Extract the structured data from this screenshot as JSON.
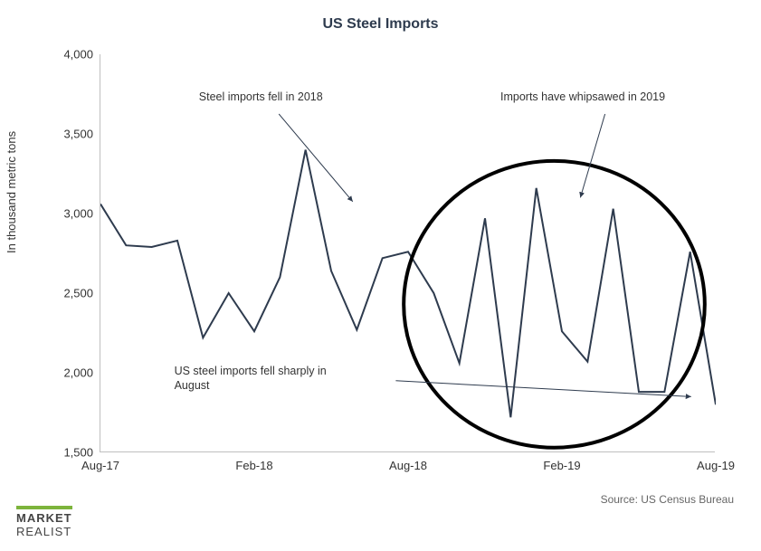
{
  "title": "US Steel Imports",
  "y_axis_label": "In thousand metric tons",
  "source": "Source: US Census Bureau",
  "logo_line1": "MARKET",
  "logo_line2": "REALIST",
  "chart": {
    "type": "line",
    "line_color": "#2e3b4e",
    "line_width": 2,
    "background_color": "#ffffff",
    "axis_color": "#bfbfbf",
    "ylim": [
      1500,
      4000
    ],
    "ytick_step": 500,
    "y_ticks": [
      {
        "value": 1500,
        "label": "1,500"
      },
      {
        "value": 2000,
        "label": "2,000"
      },
      {
        "value": 2500,
        "label": "2,500"
      },
      {
        "value": 3000,
        "label": "3,000"
      },
      {
        "value": 3500,
        "label": "3,500"
      },
      {
        "value": 4000,
        "label": "4,000"
      }
    ],
    "x_ticks": [
      {
        "index": 0,
        "label": "Aug-17"
      },
      {
        "index": 6,
        "label": "Feb-18"
      },
      {
        "index": 12,
        "label": "Aug-18"
      },
      {
        "index": 18,
        "label": "Feb-19"
      },
      {
        "index": 24,
        "label": "Aug-19"
      }
    ],
    "series": [
      {
        "i": 0,
        "v": 3060
      },
      {
        "i": 1,
        "v": 2800
      },
      {
        "i": 2,
        "v": 2790
      },
      {
        "i": 3,
        "v": 2830
      },
      {
        "i": 4,
        "v": 2220
      },
      {
        "i": 5,
        "v": 2500
      },
      {
        "i": 6,
        "v": 2260
      },
      {
        "i": 7,
        "v": 2600
      },
      {
        "i": 8,
        "v": 3400
      },
      {
        "i": 9,
        "v": 2640
      },
      {
        "i": 10,
        "v": 2270
      },
      {
        "i": 11,
        "v": 2720
      },
      {
        "i": 12,
        "v": 2760
      },
      {
        "i": 13,
        "v": 2500
      },
      {
        "i": 14,
        "v": 2060
      },
      {
        "i": 15,
        "v": 2970
      },
      {
        "i": 16,
        "v": 1720
      },
      {
        "i": 17,
        "v": 3160
      },
      {
        "i": 18,
        "v": 2260
      },
      {
        "i": 19,
        "v": 2070
      },
      {
        "i": 20,
        "v": 3030
      },
      {
        "i": 21,
        "v": 1880
      },
      {
        "i": 22,
        "v": 1880
      },
      {
        "i": 23,
        "v": 2760
      },
      {
        "i": 24,
        "v": 1800
      }
    ],
    "n_points": 25,
    "circle": {
      "cx_index": 17.7,
      "cy_value": 2430,
      "r_value": 900,
      "stroke": "#000000",
      "stroke_width": 4
    }
  },
  "annotations": {
    "a1": {
      "text": "Steel imports fell in 2018",
      "text_left_pct": 16,
      "text_top_pct": 9,
      "arrow_from_pct": [
        29,
        15
      ],
      "arrow_to_pct": [
        41,
        37
      ],
      "arrow_color": "#2e3b4e"
    },
    "a2": {
      "text": "Imports have whipsawed in 2019",
      "text_left_pct": 65,
      "text_top_pct": 9,
      "arrow_from_pct": [
        82,
        15
      ],
      "arrow_to_pct": [
        78,
        36
      ],
      "arrow_color": "#2e3b4e"
    },
    "a3": {
      "text1": "US steel imports fell sharply in",
      "text2": "August",
      "text_left_pct": 12,
      "text_top_pct": 78,
      "arrow_from_pct": [
        48,
        82
      ],
      "arrow_to_pct": [
        96,
        86
      ],
      "arrow_color": "#2e3b4e"
    }
  }
}
